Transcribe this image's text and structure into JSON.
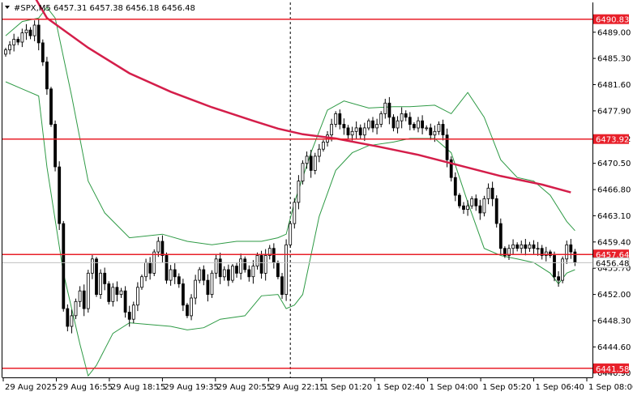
{
  "header": {
    "symbol_line": "#SPX,M5 6457.31 6457.38 6456.18 6456.48"
  },
  "chart_data": {
    "type": "candlestick",
    "symbol": "#SPX",
    "timeframe": "M5",
    "ohlc_header": {
      "open": 6457.31,
      "high": 6457.38,
      "low": 6456.18,
      "close": 6456.48
    },
    "ylim": [
      6440.3,
      6493.2
    ],
    "y_ticks": [
      "6489.00",
      "6485.30",
      "6481.60",
      "6477.90",
      "6473.92",
      "6470.50",
      "6466.80",
      "6463.10",
      "6459.40",
      "6455.70",
      "6452.00",
      "6448.30",
      "6444.60",
      "6440.90"
    ],
    "x_ticks": [
      "29 Aug 2025",
      "29 Aug 16:55",
      "29 Aug 18:15",
      "29 Aug 19:35",
      "29 Aug 20:55",
      "29 Aug 22:15",
      "1 Sep 01:20",
      "1 Sep 02:40",
      "1 Sep 04:00",
      "1 Sep 05:20",
      "1 Sep 06:40",
      "1 Sep 08:00"
    ],
    "x_range": [
      0,
      139
    ],
    "session_break_x": 69,
    "levels": [
      {
        "value": 6490.83,
        "label": "6490.83",
        "color": "#e8202a"
      },
      {
        "value": 6473.92,
        "label": "6473.92",
        "color": "#e8202a"
      },
      {
        "value": 6457.64,
        "label": "6457.64",
        "color": "#e8202a"
      },
      {
        "value": 6441.58,
        "label": "6441.58",
        "color": "#e8202a"
      }
    ],
    "current_price": {
      "value": 6456.48,
      "label": "6456.48"
    },
    "closes": [
      6486.5,
      6487.2,
      6488,
      6487.6,
      6488.9,
      6489.3,
      6488.5,
      6490,
      6487.5,
      6484.8,
      6481,
      6476,
      6470,
      6462,
      6450,
      6447.5,
      6449,
      6451,
      6452.5,
      6450,
      6455,
      6457,
      6452,
      6455,
      6453.5,
      6451,
      6453,
      6452,
      6452.5,
      6449.5,
      6448.5,
      6450.5,
      6453,
      6454.5,
      6456.5,
      6455,
      6458,
      6459.5,
      6457.5,
      6454,
      6455.5,
      6454.5,
      6453.5,
      6450.5,
      6449,
      6451.5,
      6454,
      6455.5,
      6454,
      6452,
      6455,
      6457,
      6454.5,
      6455.5,
      6454,
      6456,
      6455,
      6457,
      6455.5,
      6454.5,
      6456,
      6457.5,
      6455,
      6457.5,
      6458.5,
      6456.5,
      6454.5,
      6452,
      6459,
      6462,
      6465,
      6468,
      6470.5,
      6471.5,
      6469.5,
      6471.5,
      6472.5,
      6473.5,
      6474.5,
      6476,
      6477.5,
      6476,
      6475.5,
      6474.5,
      6475,
      6475.5,
      6474.5,
      6475.5,
      6476.5,
      6475.5,
      6476,
      6477.5,
      6479,
      6477,
      6475.5,
      6476.5,
      6477.5,
      6477,
      6476,
      6475.5,
      6476.5,
      6475.5,
      6475.5,
      6474.5,
      6475,
      6476,
      6474.5,
      6471,
      6468.5,
      6466,
      6464.5,
      6464,
      6464.5,
      6465.5,
      6464.5,
      6463.5,
      6465.5,
      6467,
      6465.5,
      6462,
      6458.5,
      6457.5,
      6458.5,
      6459,
      6458.5,
      6459,
      6458.5,
      6459,
      6458.5,
      6458.5,
      6457.5,
      6458,
      6457.5,
      6454.5,
      6454,
      6457,
      6459,
      6458,
      6456.5
    ],
    "sma_line": [
      {
        "x": 6,
        "y": 6495
      },
      {
        "x": 10,
        "y": 6491
      },
      {
        "x": 20,
        "y": 6486.8
      },
      {
        "x": 30,
        "y": 6483.2
      },
      {
        "x": 40,
        "y": 6480.6
      },
      {
        "x": 50,
        "y": 6478.4
      },
      {
        "x": 60,
        "y": 6476.5
      },
      {
        "x": 66,
        "y": 6475.4
      },
      {
        "x": 72,
        "y": 6474.6
      },
      {
        "x": 80,
        "y": 6474.0
      },
      {
        "x": 90,
        "y": 6472.9
      },
      {
        "x": 100,
        "y": 6471.7
      },
      {
        "x": 110,
        "y": 6470.2
      },
      {
        "x": 120,
        "y": 6468.7
      },
      {
        "x": 130,
        "y": 6467.5
      },
      {
        "x": 137,
        "y": 6466.4
      }
    ],
    "upper_band": [
      {
        "x": 0,
        "y": 6488.5
      },
      {
        "x": 4,
        "y": 6490.5
      },
      {
        "x": 8,
        "y": 6491
      },
      {
        "x": 10,
        "y": 6492.5
      },
      {
        "x": 12,
        "y": 6491
      },
      {
        "x": 16,
        "y": 6480
      },
      {
        "x": 20,
        "y": 6468
      },
      {
        "x": 24,
        "y": 6463.5
      },
      {
        "x": 30,
        "y": 6460
      },
      {
        "x": 38,
        "y": 6460.5
      },
      {
        "x": 44,
        "y": 6459.5
      },
      {
        "x": 50,
        "y": 6459
      },
      {
        "x": 56,
        "y": 6459.5
      },
      {
        "x": 62,
        "y": 6459.5
      },
      {
        "x": 66,
        "y": 6460
      },
      {
        "x": 68,
        "y": 6460.5
      },
      {
        "x": 70,
        "y": 6465
      },
      {
        "x": 74,
        "y": 6472
      },
      {
        "x": 78,
        "y": 6478
      },
      {
        "x": 82,
        "y": 6479.3
      },
      {
        "x": 88,
        "y": 6478.3
      },
      {
        "x": 94,
        "y": 6478.5
      },
      {
        "x": 98,
        "y": 6478.5
      },
      {
        "x": 104,
        "y": 6478.7
      },
      {
        "x": 108,
        "y": 6477.5
      },
      {
        "x": 112,
        "y": 6480.5
      },
      {
        "x": 116,
        "y": 6477
      },
      {
        "x": 120,
        "y": 6471
      },
      {
        "x": 124,
        "y": 6468.5
      },
      {
        "x": 128,
        "y": 6468
      },
      {
        "x": 132,
        "y": 6466
      },
      {
        "x": 136,
        "y": 6462.3
      },
      {
        "x": 138,
        "y": 6461
      }
    ],
    "lower_band": [
      {
        "x": 0,
        "y": 6482
      },
      {
        "x": 4,
        "y": 6481
      },
      {
        "x": 8,
        "y": 6480
      },
      {
        "x": 10,
        "y": 6470
      },
      {
        "x": 14,
        "y": 6455
      },
      {
        "x": 18,
        "y": 6445
      },
      {
        "x": 20,
        "y": 6440.5
      },
      {
        "x": 22,
        "y": 6442
      },
      {
        "x": 26,
        "y": 6446.5
      },
      {
        "x": 30,
        "y": 6448
      },
      {
        "x": 36,
        "y": 6447.7
      },
      {
        "x": 40,
        "y": 6447.5
      },
      {
        "x": 44,
        "y": 6447
      },
      {
        "x": 48,
        "y": 6447.3
      },
      {
        "x": 52,
        "y": 6448.5
      },
      {
        "x": 58,
        "y": 6449
      },
      {
        "x": 62,
        "y": 6451.8
      },
      {
        "x": 66,
        "y": 6452
      },
      {
        "x": 68,
        "y": 6450
      },
      {
        "x": 70,
        "y": 6450.5
      },
      {
        "x": 72,
        "y": 6452
      },
      {
        "x": 76,
        "y": 6463
      },
      {
        "x": 80,
        "y": 6469.5
      },
      {
        "x": 84,
        "y": 6472
      },
      {
        "x": 88,
        "y": 6473
      },
      {
        "x": 94,
        "y": 6473.5
      },
      {
        "x": 98,
        "y": 6474
      },
      {
        "x": 104,
        "y": 6474
      },
      {
        "x": 108,
        "y": 6472
      },
      {
        "x": 112,
        "y": 6465
      },
      {
        "x": 116,
        "y": 6458.5
      },
      {
        "x": 120,
        "y": 6457.5
      },
      {
        "x": 124,
        "y": 6457
      },
      {
        "x": 128,
        "y": 6456.5
      },
      {
        "x": 132,
        "y": 6455
      },
      {
        "x": 134,
        "y": 6453.5
      },
      {
        "x": 136,
        "y": 6455
      },
      {
        "x": 138,
        "y": 6455.5
      }
    ],
    "colors": {
      "background": "#ffffff",
      "candle": "#000000",
      "level": "#e8202a",
      "sma": "#d41e4a",
      "band": "#2e9a45",
      "axis": "#000000",
      "session_line": "#000000"
    }
  }
}
